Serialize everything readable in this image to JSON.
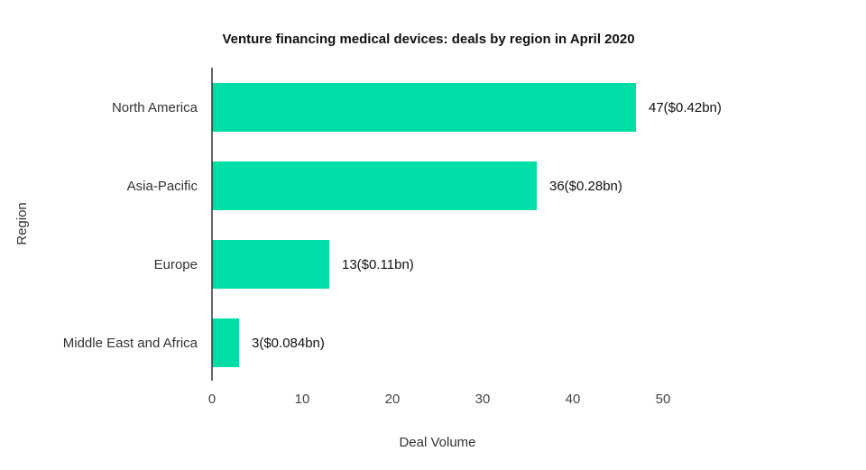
{
  "chart_data": {
    "type": "bar",
    "orientation": "horizontal",
    "title": "Venture financing medical devices: deals by region in April 2020",
    "xlabel": "Deal Volume",
    "ylabel": "Region",
    "categories": [
      "North America",
      "Asia-Pacific",
      "Europe",
      "Middle East and Africa"
    ],
    "values": [
      47,
      36,
      13,
      3
    ],
    "data_labels": [
      "47($0.42bn)",
      "36($0.28bn)",
      "13($0.11bn)",
      "3($0.084bn)"
    ],
    "xlim": [
      0,
      50
    ],
    "xticks": [
      0,
      10,
      20,
      30,
      40,
      50
    ],
    "grid": false,
    "legend": "none",
    "colors": {
      "bar": "#00dea8",
      "axis": "#333333"
    }
  }
}
